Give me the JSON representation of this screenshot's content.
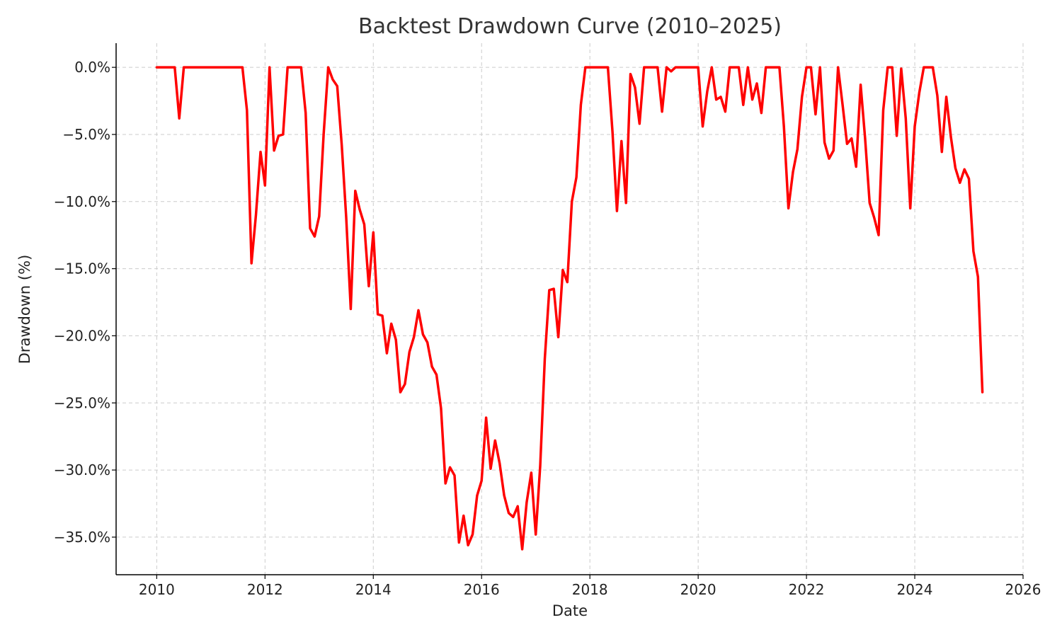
{
  "chart_data": {
    "type": "line",
    "title": "Backtest Drawdown Curve (2010–2025)",
    "xlabel": "Date",
    "ylabel": "Drawdown (%)",
    "xlim": [
      2009.25,
      2026.0
    ],
    "ylim": [
      -37.8,
      1.8
    ],
    "x_ticks": [
      2010,
      2012,
      2014,
      2016,
      2018,
      2020,
      2022,
      2024,
      2026
    ],
    "y_ticks": [
      0,
      -5,
      -10,
      -15,
      -20,
      -25,
      -30,
      -35
    ],
    "x_tick_labels": [
      "2010",
      "2012",
      "2014",
      "2016",
      "2018",
      "2020",
      "2022",
      "2024",
      "2026"
    ],
    "y_tick_labels": [
      "0.0%",
      "−5.0%",
      "−10.0%",
      "−15.0%",
      "−20.0%",
      "−25.0%",
      "−30.0%",
      "−35.0%"
    ],
    "grid": true,
    "color": "#ff0000",
    "series": [
      {
        "x": [
          2010.0,
          2010.083,
          2010.167,
          2010.25,
          2010.333,
          2010.417,
          2010.5,
          2010.583,
          2010.667,
          2010.75,
          2010.833,
          2010.917,
          2011.0,
          2011.083,
          2011.167,
          2011.25,
          2011.333,
          2011.417,
          2011.5,
          2011.583,
          2011.667,
          2011.75,
          2011.833,
          2011.917,
          2012.0,
          2012.083,
          2012.167,
          2012.25,
          2012.333,
          2012.417,
          2012.5,
          2012.583,
          2012.667,
          2012.75,
          2012.833,
          2012.917,
          2013.0,
          2013.083,
          2013.167,
          2013.25,
          2013.333,
          2013.417,
          2013.5,
          2013.583,
          2013.667,
          2013.75,
          2013.833,
          2013.917,
          2014.0,
          2014.083,
          2014.167,
          2014.25,
          2014.333,
          2014.417,
          2014.5,
          2014.583,
          2014.667,
          2014.75,
          2014.833,
          2014.917,
          2015.0,
          2015.083,
          2015.167,
          2015.25,
          2015.333,
          2015.417,
          2015.5,
          2015.583,
          2015.667,
          2015.75,
          2015.833,
          2015.917,
          2016.0,
          2016.083,
          2016.167,
          2016.25,
          2016.333,
          2016.417,
          2016.5,
          2016.583,
          2016.667,
          2016.75,
          2016.833,
          2016.917,
          2017.0,
          2017.083,
          2017.167,
          2017.25,
          2017.333,
          2017.417,
          2017.5,
          2017.583,
          2017.667,
          2017.75,
          2017.833,
          2017.917,
          2018.0,
          2018.083,
          2018.167,
          2018.25,
          2018.333,
          2018.417,
          2018.5,
          2018.583,
          2018.667,
          2018.75,
          2018.833,
          2018.917,
          2019.0,
          2019.083,
          2019.167,
          2019.25,
          2019.333,
          2019.417,
          2019.5,
          2019.583,
          2019.667,
          2019.75,
          2019.833,
          2019.917,
          2020.0,
          2020.083,
          2020.167,
          2020.25,
          2020.333,
          2020.417,
          2020.5,
          2020.583,
          2020.667,
          2020.75,
          2020.833,
          2020.917,
          2021.0,
          2021.083,
          2021.167,
          2021.25,
          2021.333,
          2021.417,
          2021.5,
          2021.583,
          2021.667,
          2021.75,
          2021.833,
          2021.917,
          2022.0,
          2022.083,
          2022.167,
          2022.25,
          2022.333,
          2022.417,
          2022.5,
          2022.583,
          2022.667,
          2022.75,
          2022.833,
          2022.917,
          2023.0,
          2023.083,
          2023.167,
          2023.25,
          2023.333,
          2023.417,
          2023.5,
          2023.583,
          2023.667,
          2023.75,
          2023.833,
          2023.917,
          2024.0,
          2024.083,
          2024.167,
          2024.25,
          2024.333,
          2024.417,
          2024.5,
          2024.583,
          2024.667,
          2024.75,
          2024.833,
          2024.917,
          2025.0,
          2025.083,
          2025.167,
          2025.25
        ],
        "values": [
          0.0,
          0.0,
          0.0,
          0.0,
          0.0,
          -3.8,
          0.0,
          0.0,
          0.0,
          0.0,
          0.0,
          0.0,
          0.0,
          0.0,
          0.0,
          0.0,
          0.0,
          0.0,
          0.0,
          0.0,
          -3.2,
          -14.6,
          -11.0,
          -6.3,
          -8.8,
          0.0,
          -6.2,
          -5.1,
          -5.0,
          0.0,
          0.0,
          0.0,
          0.0,
          -3.4,
          -12.0,
          -12.6,
          -11.1,
          -5.0,
          0.0,
          -0.9,
          -1.4,
          -5.8,
          -11.2,
          -18.0,
          -9.2,
          -10.6,
          -11.7,
          -16.3,
          -12.3,
          -18.4,
          -18.5,
          -21.3,
          -19.1,
          -20.3,
          -24.2,
          -23.6,
          -21.2,
          -20.1,
          -18.1,
          -19.9,
          -20.5,
          -22.3,
          -22.9,
          -25.4,
          -31.0,
          -29.8,
          -30.4,
          -35.4,
          -33.4,
          -35.6,
          -34.8,
          -31.9,
          -30.8,
          -26.1,
          -29.9,
          -27.8,
          -29.5,
          -31.9,
          -33.2,
          -33.5,
          -32.7,
          -35.9,
          -32.4,
          -30.2,
          -34.8,
          -29.7,
          -21.7,
          -16.6,
          -16.5,
          -20.1,
          -15.1,
          -16.0,
          -10.0,
          -8.2,
          -2.8,
          0.0,
          0.0,
          0.0,
          0.0,
          0.0,
          0.0,
          -4.8,
          -10.7,
          -5.5,
          -10.1,
          -0.5,
          -1.5,
          -4.2,
          0.0,
          0.0,
          0.0,
          0.0,
          -3.3,
          0.0,
          -0.3,
          0.0,
          0.0,
          0.0,
          0.0,
          0.0,
          0.0,
          -4.4,
          -1.8,
          0.0,
          -2.4,
          -2.2,
          -3.3,
          0.0,
          0.0,
          0.0,
          -2.8,
          0.0,
          -2.4,
          -1.2,
          -3.4,
          0.0,
          0.0,
          0.0,
          0.0,
          -4.4,
          -10.5,
          -7.8,
          -6.1,
          -2.2,
          0.0,
          0.0,
          -3.5,
          0.0,
          -5.6,
          -6.8,
          -6.2,
          0.0,
          -2.8,
          -5.7,
          -5.3,
          -7.4,
          -1.3,
          -5.3,
          -10.1,
          -11.2,
          -12.5,
          -3.2,
          0.0,
          0.0,
          -5.1,
          -0.1,
          -3.8,
          -10.5,
          -4.4,
          -1.9,
          0.0,
          0.0,
          0.0,
          -2.1,
          -6.3,
          -2.2,
          -5.2,
          -7.5,
          -8.6,
          -7.6,
          -8.3,
          -13.7,
          -15.6,
          -24.2
        ]
      }
    ]
  }
}
